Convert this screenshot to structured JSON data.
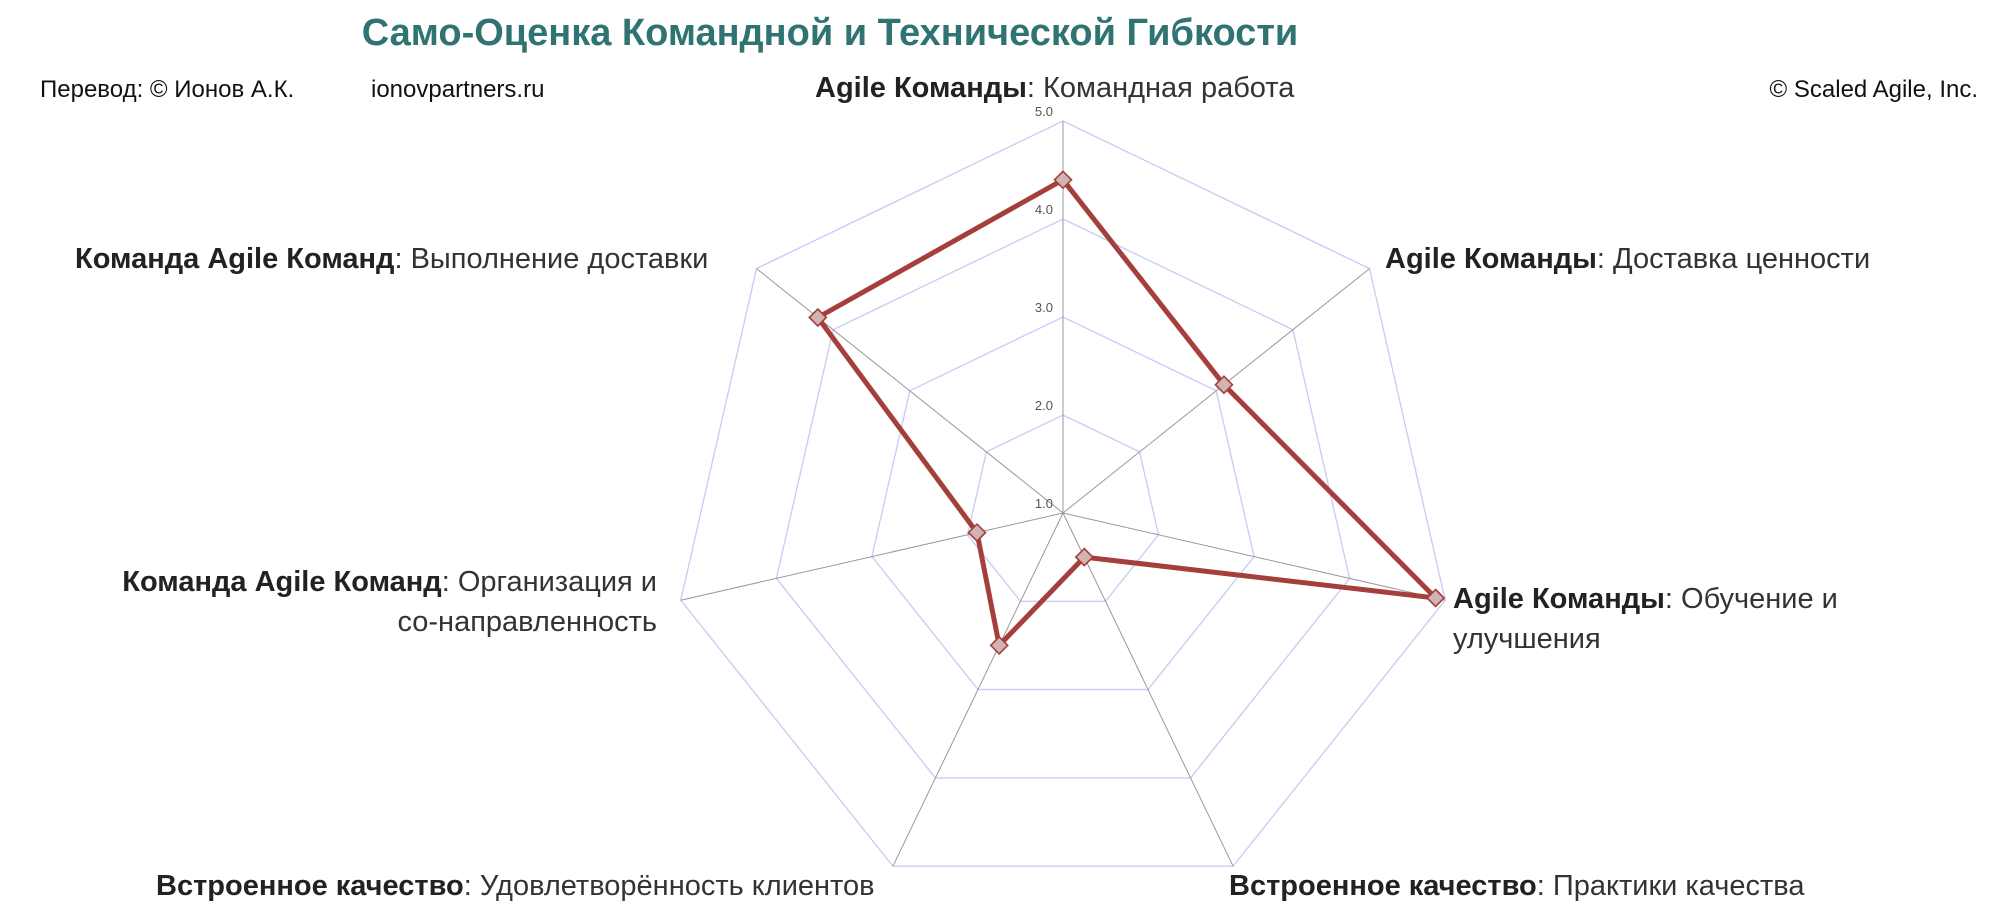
{
  "title": "Само-Оценка Командной и Технической Гибкости",
  "credits": {
    "translation": "Перевод: © Ионов А.К.",
    "website": "ionovpartners.ru",
    "copyright": "© Scaled Agile,  Inc."
  },
  "colors": {
    "title": "#2f7373",
    "series_line": "#a43f3b",
    "marker_fill": "#d0b4b4",
    "grid": "#c7cff5",
    "spoke": "#999999"
  },
  "chart_data": {
    "type": "radar",
    "title": "Само-Оценка Командной и Технической Гибкости",
    "scale": {
      "min": 1,
      "max": 5
    },
    "ticks": [
      "1.0",
      "2.0",
      "3.0",
      "4.0",
      "5.0"
    ],
    "grid": true,
    "axes": [
      {
        "group": "Agile Команды",
        "name": "Командная работа"
      },
      {
        "group": "Agile Команды",
        "name": "Доставка ценности"
      },
      {
        "group": "Agile Команды",
        "name": "Обучение и улучшения",
        "name_line1": "Обучение и",
        "name_line2": "улучшения"
      },
      {
        "group": "Встроенное качество",
        "name": "Практики качества"
      },
      {
        "group": "Встроенное качество",
        "name": "Удовлетворённость клиентов"
      },
      {
        "group": "Команда Agile Команд",
        "name": "Организация и со-направленность",
        "name_line1": "Организация и",
        "name_line2": "со-направленность"
      },
      {
        "group": "Команда Agile Команд",
        "name": "Выполнение доставки"
      }
    ],
    "series": [
      {
        "values": [
          4.4,
          3.1,
          4.9,
          1.5,
          2.5,
          1.9,
          4.2
        ]
      }
    ]
  }
}
